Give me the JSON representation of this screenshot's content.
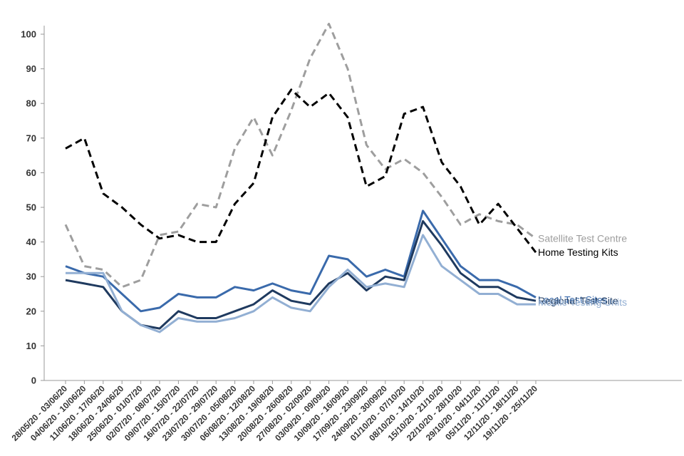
{
  "chart_data": {
    "type": "line",
    "title": "",
    "xlabel": "",
    "ylabel": "",
    "ylim": [
      0,
      100
    ],
    "yticks": [
      0,
      10,
      20,
      30,
      40,
      50,
      60,
      70,
      80,
      90,
      100
    ],
    "grid": false,
    "categories": [
      "28/05/20 - 03/06/20",
      "04/06/20 - 10/06/20",
      "11/06/20 - 17/06/20",
      "18/06/20 - 24/06/20",
      "25/06/20 - 01/07/20",
      "02/07/20 - 08/07/20",
      "09/07/20 - 15/07/20",
      "16/07/20 - 22/07/20",
      "23/07/20 - 29/07/20",
      "30/07/20 - 05/08/20",
      "06/08/20 - 12/08/20",
      "13/08/20 - 19/08/20",
      "20/08/20 - 26/08/20",
      "27/08/20 - 02/09/20",
      "03/09/20 - 09/09/20",
      "10/09/20 - 16/09/20",
      "17/09/20 - 23/09/20",
      "24/09/20 - 30/09/20",
      "01/10/20 - 07/10/20",
      "08/10/20 - 14/10/20",
      "15/10/20 - 21/10/20",
      "22/10/20 - 28/10/20",
      "29/10/20 - 04/11/20",
      "05/11/20 - 11/11/20",
      "12/11/20 - 18/11/20",
      "19/11/20 - 25/11/20"
    ],
    "series": [
      {
        "name": "Satellite Test Centre",
        "color": "#9e9e9e",
        "dashed": true,
        "values": [
          45,
          33,
          32,
          27,
          29,
          42,
          43,
          51,
          50,
          67,
          76,
          65,
          78,
          93,
          103,
          90,
          68,
          61,
          64,
          60,
          53,
          45,
          48,
          46,
          45,
          41
        ]
      },
      {
        "name": "Home Testing Kits",
        "color": "#000000",
        "dashed": true,
        "values": [
          67,
          70,
          54,
          50,
          45,
          41,
          42,
          40,
          40,
          51,
          57,
          76,
          84,
          79,
          83,
          76,
          56,
          59,
          77,
          79,
          63,
          56,
          45,
          51,
          44,
          37
        ]
      },
      {
        "name": "Local Test Sites",
        "color": "#3a6aab",
        "dashed": false,
        "values": [
          33,
          31,
          30,
          25,
          20,
          21,
          25,
          24,
          24,
          27,
          26,
          28,
          26,
          25,
          36,
          35,
          30,
          32,
          30,
          49,
          41,
          33,
          29,
          29,
          27,
          24
        ]
      },
      {
        "name": "Regional Test Site",
        "color": "#1f3a5f",
        "dashed": false,
        "values": [
          29,
          28,
          27,
          20,
          16,
          15,
          20,
          18,
          18,
          20,
          22,
          26,
          23,
          22,
          28,
          31,
          26,
          30,
          29,
          46,
          39,
          31,
          27,
          27,
          24,
          23
        ]
      },
      {
        "name": "Mobile Testing Units",
        "color": "#92afd3",
        "dashed": false,
        "values": [
          31,
          31,
          31,
          20,
          16,
          14,
          18,
          17,
          17,
          18,
          20,
          24,
          21,
          20,
          27,
          32,
          27,
          28,
          27,
          42,
          33,
          29,
          25,
          25,
          22,
          22
        ]
      }
    ]
  }
}
